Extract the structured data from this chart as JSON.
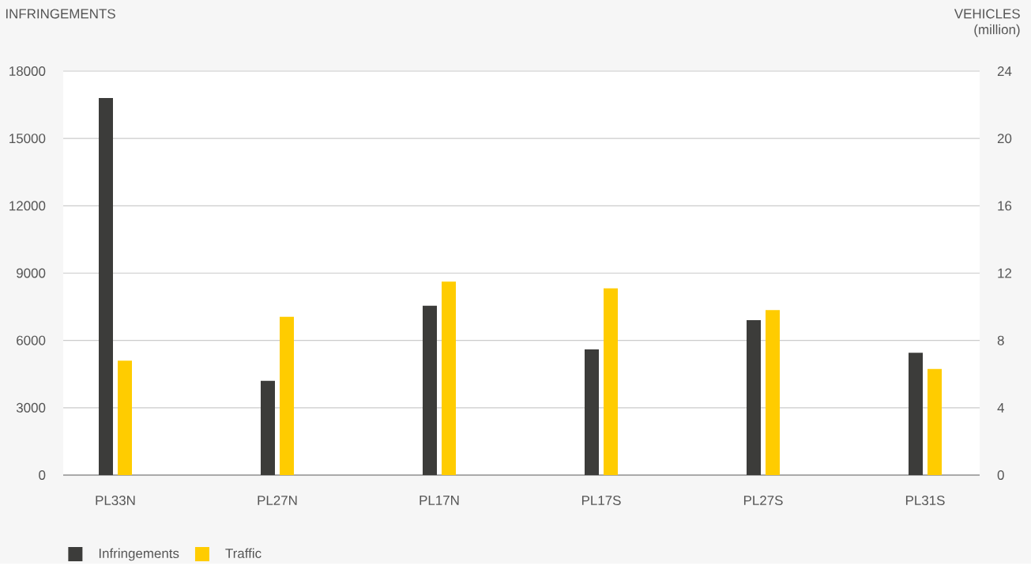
{
  "chart_data": {
    "type": "bar",
    "ylabel": "INFRINGEMENTS",
    "y2label": "VEHICLES (million)",
    "categories": [
      "PL33N",
      "PL27N",
      "PL17N",
      "PL17S",
      "PL27S",
      "PL31S"
    ],
    "series": [
      {
        "name": "Infringements",
        "color": "#3c3c3a",
        "values": [
          16800,
          4200,
          7550,
          5600,
          6900,
          5450
        ]
      },
      {
        "name": "Traffic",
        "color": "#ffcc00",
        "axis": "y2",
        "values": [
          6.8,
          9.4,
          11.5,
          11.1,
          9.8,
          6.3
        ]
      }
    ],
    "ylim": [
      0,
      18000
    ],
    "yticks": [
      0,
      3000,
      6000,
      9000,
      12000,
      15000,
      18000
    ],
    "y2lim": [
      0,
      24
    ],
    "y2ticks": [
      0,
      4,
      8,
      12,
      16,
      20,
      24
    ],
    "grid": "y",
    "legend": "bottom left"
  }
}
